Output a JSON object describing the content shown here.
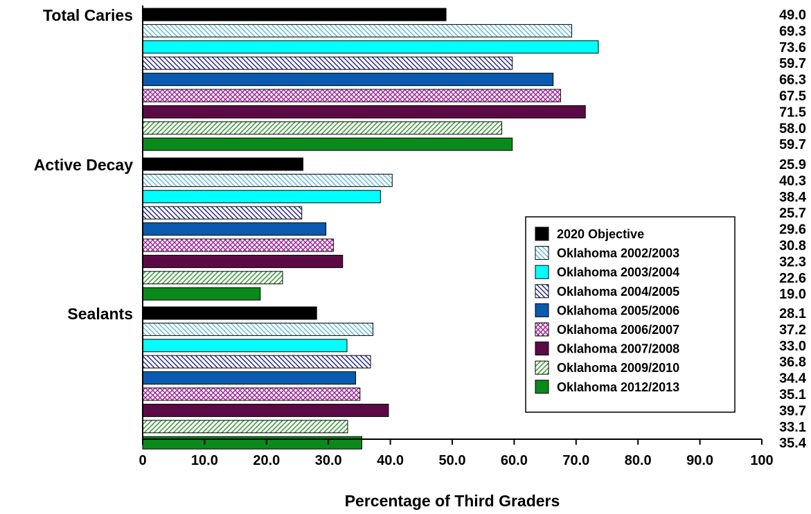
{
  "chart_data": {
    "type": "bar",
    "orientation": "horizontal",
    "categories": [
      "Total Caries",
      "Active Decay",
      "Sealants"
    ],
    "series": [
      {
        "name": "2020 Objective",
        "values": [
          49.0,
          25.9,
          28.1
        ],
        "fill": "solid",
        "color": "#000000"
      },
      {
        "name": "Oklahoma 2002/2003",
        "values": [
          69.3,
          40.3,
          37.2
        ],
        "fill": "hatch-backslash",
        "color": "#5bb8d8"
      },
      {
        "name": "Oklahoma 2003/2004",
        "values": [
          73.6,
          38.4,
          33.0
        ],
        "fill": "solid",
        "color": "#00ffff"
      },
      {
        "name": "Oklahoma 2004/2005",
        "values": [
          59.7,
          25.7,
          36.8
        ],
        "fill": "hatch-backslash",
        "color": "#1a1a8c"
      },
      {
        "name": "Oklahoma 2005/2006",
        "values": [
          66.3,
          29.6,
          34.4
        ],
        "fill": "solid",
        "color": "#0a5bb0"
      },
      {
        "name": "Oklahoma 2006/2007",
        "values": [
          67.5,
          30.8,
          35.1
        ],
        "fill": "crosshatch",
        "color": "#a0209a"
      },
      {
        "name": "Oklahoma 2007/2008",
        "values": [
          71.5,
          32.3,
          39.7
        ],
        "fill": "solid",
        "color": "#5c0a45"
      },
      {
        "name": "Oklahoma 2009/2010",
        "values": [
          58.0,
          22.6,
          33.1
        ],
        "fill": "hatch-slash",
        "color": "#3f9a3f"
      },
      {
        "name": "Oklahoma 2012/2013",
        "values": [
          59.7,
          19.0,
          35.4
        ],
        "fill": "solid",
        "color": "#0a8a1a"
      }
    ],
    "value_labels": [
      [
        "49.0",
        "69.3",
        "73.6",
        "59.7",
        "66.3",
        "67.5",
        "71.5",
        "58.0",
        "59.7"
      ],
      [
        "25.9",
        "40.3",
        "38.4",
        "25.7",
        "29.6",
        "30.8",
        "32.3",
        "22.6",
        "19.0"
      ],
      [
        "28.1",
        "37.2",
        "33.0",
        "36.8",
        "34.4",
        "35.1",
        "39.7",
        "33.1",
        "35.4"
      ]
    ],
    "xlabel": "Percentage of Third Graders",
    "xlim": [
      0,
      100
    ],
    "xticks": [
      "0",
      "10.0",
      "20.0",
      "30.0",
      "40.0",
      "50.0",
      "60.0",
      "70.0",
      "80.0",
      "90.0",
      "100"
    ],
    "grid": false,
    "legend_position": "right-middle"
  }
}
